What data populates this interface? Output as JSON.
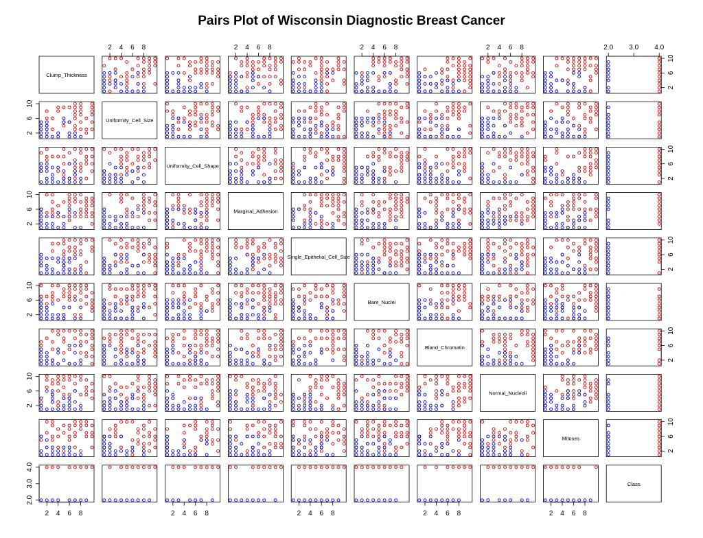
{
  "chart_data": {
    "type": "scatter",
    "title": "Pairs Plot of Wisconsin Diagnostic Breast Cancer",
    "variables": [
      "Clump_Thickness",
      "Uniformity_Cell_Size",
      "Uniformity_Cell_Shape",
      "Marginal_Adhesion",
      "Single_Epithelial_Cell_Size",
      "Bare_Nuclei",
      "Bland_Chromatin",
      "Normal_Nucleoli",
      "Mitoses",
      "Class"
    ],
    "ranges": [
      [
        1,
        10
      ],
      [
        1,
        10
      ],
      [
        1,
        10
      ],
      [
        1,
        10
      ],
      [
        1,
        10
      ],
      [
        1,
        10
      ],
      [
        1,
        10
      ],
      [
        1,
        10
      ],
      [
        1,
        10
      ],
      [
        2,
        4
      ]
    ],
    "ticks": {
      "feature": [
        "2",
        "4",
        "6",
        "8"
      ],
      "feature_values": [
        2,
        4,
        6,
        8
      ],
      "feature_y": [
        "2",
        "6",
        "10"
      ],
      "feature_y_values": [
        2,
        6,
        10
      ],
      "class_top": [
        "2.0",
        "3.0",
        "4.0"
      ],
      "class_top_values": [
        2,
        3,
        4
      ],
      "class_left": [
        "2.0",
        "3.0",
        "4.0"
      ],
      "class_left_values": [
        2,
        3,
        4
      ]
    },
    "classes": [
      {
        "value": 2,
        "color": "#0000cc"
      },
      {
        "value": 4,
        "color": "#cc0000"
      }
    ],
    "grid": false,
    "legend": "none"
  }
}
